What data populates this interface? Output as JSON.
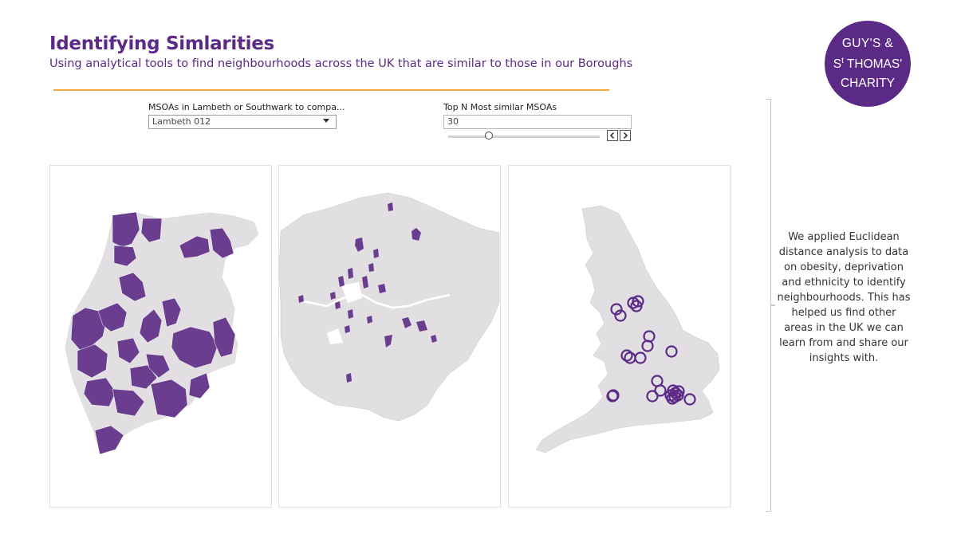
{
  "header": {
    "title": "Identifying Simlarities",
    "subtitle": "Using analytical tools to find neighbourhoods across the UK that are similar to those in our Boroughs"
  },
  "logo": {
    "line1": "GUY'S &",
    "line2_prefix": "S",
    "line2_sup": "t",
    "line2_rest": " THOMAS'",
    "line3": "CHARITY"
  },
  "filters": {
    "msoa_label": "MSOAs in Lambeth or Southwark to compa...",
    "msoa_value": "Lambeth 012",
    "topn_label": "Top N Most similar MSOAs",
    "topn_value": "30",
    "slider_fraction": 0.27
  },
  "side_text": "We applied Euclidean distance analysis to data on obesity, deprivation and ethnicity to identify neighbourhoods. This has helped us find other areas in the UK we can learn from and share our insights with.",
  "colors": {
    "accent": "#5b2a86",
    "map_base": "#e2dfe3",
    "highlight": "#6a3d8f",
    "rule": "#f2a93b"
  }
}
